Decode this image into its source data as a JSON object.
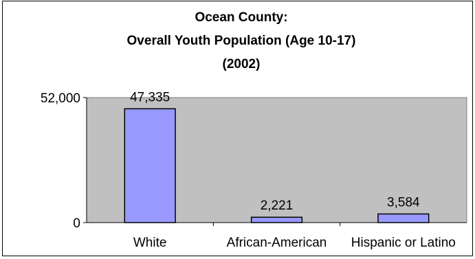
{
  "chart_data": {
    "type": "bar",
    "title_lines": [
      "Ocean County:",
      "Overall Youth Population (Age 10-17)",
      "(2002)"
    ],
    "categories": [
      "White",
      "African-American",
      "Hispanic or Latino"
    ],
    "values": [
      47335,
      2221,
      3584
    ],
    "data_labels": [
      "47,335",
      "2,221",
      "3,584"
    ],
    "y_ticks": [
      {
        "value": 0,
        "label": "0"
      },
      {
        "value": 52000,
        "label": "52,000"
      }
    ],
    "ylim": [
      0,
      52000
    ],
    "xlabel": "",
    "ylabel": "",
    "grid": false,
    "legend": "none",
    "colors": {
      "plot_background": "#c0c0c0",
      "bar_fill": "#9999ff",
      "bar_stroke": "#000000"
    }
  }
}
